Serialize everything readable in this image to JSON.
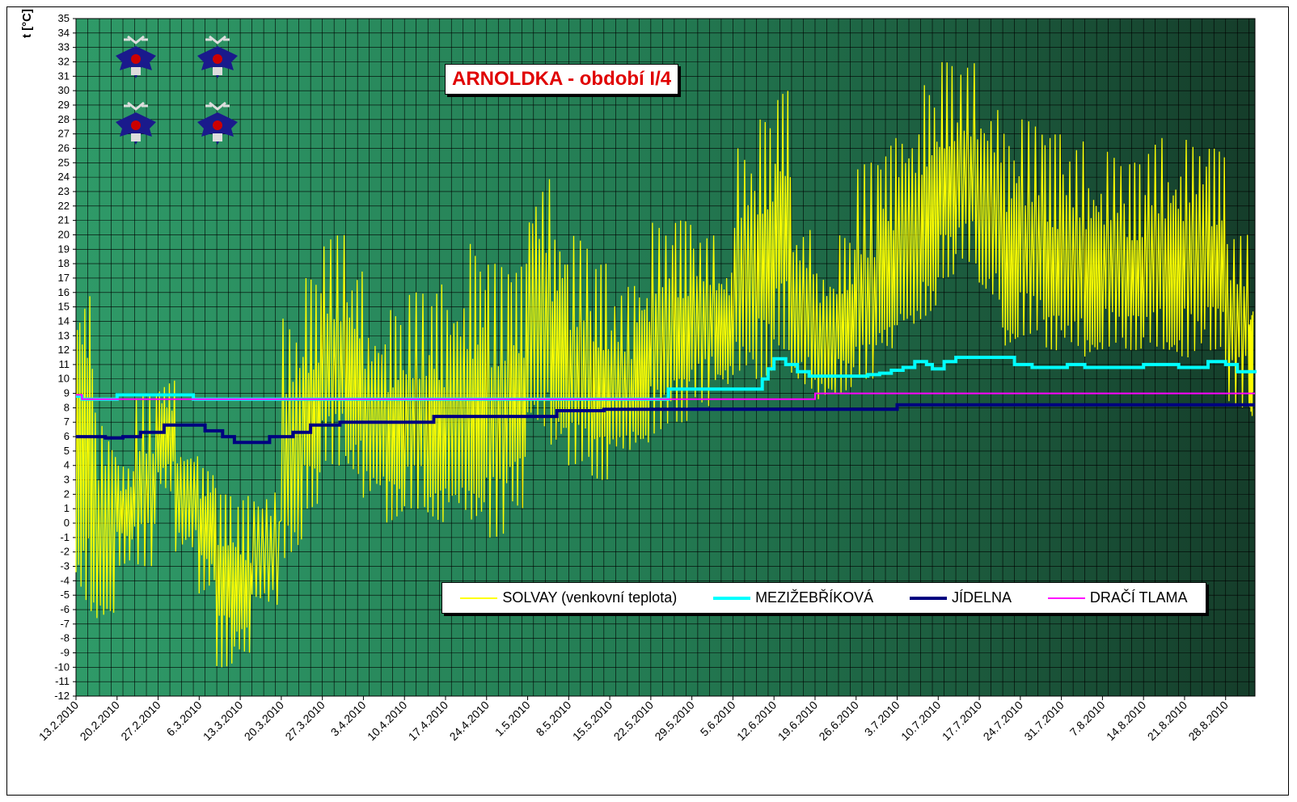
{
  "chart_data": {
    "type": "line",
    "title": "ARNOLDKA - období I/4",
    "ylabel": "t [°C]",
    "xlabel": "",
    "ylim": [
      -12,
      35
    ],
    "grid": true,
    "legend_position": "bottom-right",
    "x_start": "13.2.2010",
    "x_end": "2.9.2010",
    "x_tick_labels": [
      "13.2.2010",
      "20.2.2010",
      "27.2.2010",
      "6.3.2010",
      "13.3.2010",
      "20.3.2010",
      "27.3.2010",
      "3.4.2010",
      "10.4.2010",
      "17.4.2010",
      "24.4.2010",
      "1.5.2010",
      "8.5.2010",
      "15.5.2010",
      "22.5.2010",
      "29.5.2010",
      "5.6.2010",
      "12.6.2010",
      "19.6.2010",
      "26.6.2010",
      "3.7.2010",
      "10.7.2010",
      "17.7.2010",
      "24.7.2010",
      "31.7.2010",
      "7.8.2010",
      "14.8.2010",
      "21.8.2010",
      "28.8.2010"
    ],
    "y_tick_labels": [
      "35",
      "34",
      "33",
      "32",
      "31",
      "30",
      "29",
      "28",
      "27",
      "26",
      "25",
      "24",
      "23",
      "22",
      "21",
      "20",
      "19",
      "18",
      "17",
      "16",
      "15",
      "14",
      "13",
      "12",
      "11",
      "10",
      "9",
      "8",
      "7",
      "6",
      "5",
      "4",
      "3",
      "2",
      "1",
      "0",
      "-1",
      "-2",
      "-3",
      "-4",
      "-5",
      "-6",
      "-7",
      "-8",
      "-9",
      "-10",
      "-11",
      "-12"
    ],
    "series": [
      {
        "name": "SOLVAY (venkovní teplota)",
        "color": "#ffff00",
        "style": "thin-jagged",
        "x": [
          "13.2.2010",
          "16.2.2010",
          "20.2.2010",
          "23.2.2010",
          "27.2.2010",
          "2.3.2010",
          "6.3.2010",
          "9.3.2010",
          "12.3.2010",
          "15.3.2010",
          "20.3.2010",
          "24.3.2010",
          "27.3.2010",
          "31.3.2010",
          "3.4.2010",
          "7.4.2010",
          "10.4.2010",
          "14.4.2010",
          "17.4.2010",
          "21.4.2010",
          "24.4.2010",
          "28.4.2010",
          "1.5.2010",
          "5.5.2010",
          "8.5.2010",
          "12.5.2010",
          "15.5.2010",
          "19.5.2010",
          "22.5.2010",
          "26.5.2010",
          "29.5.2010",
          "2.6.2010",
          "5.6.2010",
          "9.6.2010",
          "12.6.2010",
          "15.6.2010",
          "19.6.2010",
          "23.6.2010",
          "26.6.2010",
          "30.6.2010",
          "3.7.2010",
          "7.7.2010",
          "10.7.2010",
          "13.7.2010",
          "17.7.2010",
          "21.7.2010",
          "24.7.2010",
          "28.7.2010",
          "31.7.2010",
          "4.8.2010",
          "7.8.2010",
          "11.8.2010",
          "14.8.2010",
          "18.8.2010",
          "21.8.2010",
          "25.8.2010",
          "28.8.2010",
          "1.9.2010"
        ],
        "y": [
          5,
          -4,
          1,
          2,
          6,
          3,
          0,
          -4,
          -6,
          -3,
          3,
          6,
          10,
          8,
          7,
          5,
          6,
          4,
          6,
          4,
          6,
          7,
          12,
          10,
          9,
          8,
          7,
          8,
          12,
          12,
          14,
          13,
          15,
          17,
          20,
          14,
          12,
          13,
          14,
          15,
          17,
          19,
          22,
          23,
          20,
          15,
          18,
          16,
          16,
          15,
          17,
          16,
          17,
          15,
          18,
          17,
          14,
          11
        ],
        "y_max": [
          17,
          9,
          4,
          9,
          10,
          5,
          4,
          2,
          2,
          3,
          15,
          17,
          20,
          18,
          14,
          15,
          16,
          17,
          17,
          20,
          18,
          18,
          25,
          21,
          20,
          18,
          17,
          18,
          21,
          21,
          20,
          18,
          27,
          28,
          30,
          21,
          18,
          20,
          25,
          27,
          29,
          31,
          32,
          32,
          30,
          28,
          28,
          27,
          27,
          25,
          26,
          25,
          27,
          26,
          27,
          26,
          20,
          15
        ],
        "y_min": [
          -7,
          -7,
          -3,
          -3,
          2,
          -3,
          -5,
          -10,
          -9,
          -6,
          -3,
          1,
          4,
          3,
          1,
          0,
          1,
          0,
          0,
          0,
          -1,
          1,
          6,
          5,
          4,
          3,
          5,
          5,
          6,
          7,
          8,
          9,
          10,
          10,
          12,
          9,
          8,
          9,
          10,
          12,
          13,
          14,
          17,
          18,
          15,
          12,
          13,
          12,
          12,
          11,
          12,
          12,
          12,
          11,
          11,
          12,
          8,
          7
        ]
      },
      {
        "name": "MEZIŽEBŘÍKOVÁ",
        "color": "#00ffff",
        "style": "thick",
        "x": [
          "13.2.2010",
          "14.2.2010",
          "20.2.2010",
          "5.3.2010",
          "6.3.2010",
          "13.3.2010",
          "24.5.2010",
          "25.5.2010",
          "5.6.2010",
          "8.6.2010",
          "10.6.2010",
          "11.6.2010",
          "12.6.2010",
          "14.6.2010",
          "16.6.2010",
          "18.6.2010",
          "19.6.2010",
          "25.6.2010",
          "28.6.2010",
          "30.6.2010",
          "2.7.2010",
          "4.7.2010",
          "6.7.2010",
          "8.7.2010",
          "9.7.2010",
          "11.7.2010",
          "13.7.2010",
          "20.7.2010",
          "23.7.2010",
          "26.7.2010",
          "1.8.2010",
          "4.8.2010",
          "14.8.2010",
          "20.8.2010",
          "25.8.2010",
          "28.8.2010",
          "30.8.2010",
          "2.9.2010"
        ],
        "y": [
          8.8,
          8.6,
          8.9,
          8.6,
          8.6,
          8.6,
          8.6,
          9.3,
          9.3,
          9.3,
          10.0,
          10.7,
          11.4,
          11.0,
          10.5,
          10.2,
          10.2,
          10.2,
          10.3,
          10.4,
          10.6,
          10.8,
          11.2,
          11.0,
          10.7,
          11.2,
          11.5,
          11.5,
          11.0,
          10.8,
          11.0,
          10.8,
          11.0,
          10.8,
          11.2,
          11.0,
          10.5,
          10.4
        ]
      },
      {
        "name": "JÍDELNA",
        "color": "#000080",
        "style": "thick",
        "x": [
          "13.2.2010",
          "18.2.2010",
          "21.2.2010",
          "24.2.2010",
          "28.2.2010",
          "5.3.2010",
          "7.3.2010",
          "10.3.2010",
          "12.3.2010",
          "18.3.2010",
          "22.3.2010",
          "25.3.2010",
          "30.3.2010",
          "12.4.2010",
          "15.4.2010",
          "27.4.2010",
          "6.5.2010",
          "14.5.2010",
          "2.7.2010",
          "3.7.2010",
          "2.9.2010"
        ],
        "y": [
          6.0,
          5.9,
          6.0,
          6.3,
          6.8,
          6.8,
          6.4,
          6.0,
          5.6,
          6.0,
          6.3,
          6.8,
          7.0,
          7.0,
          7.4,
          7.4,
          7.8,
          7.9,
          7.9,
          8.2,
          8.2
        ]
      },
      {
        "name": "DRAČÍ TLAMA",
        "color": "#ff00ff",
        "style": "thin",
        "x": [
          "13.2.2010",
          "14.2.2010",
          "18.6.2010",
          "19.6.2010",
          "2.9.2010"
        ],
        "y": [
          8.9,
          8.6,
          8.6,
          9.0,
          9.0
        ]
      }
    ]
  }
}
